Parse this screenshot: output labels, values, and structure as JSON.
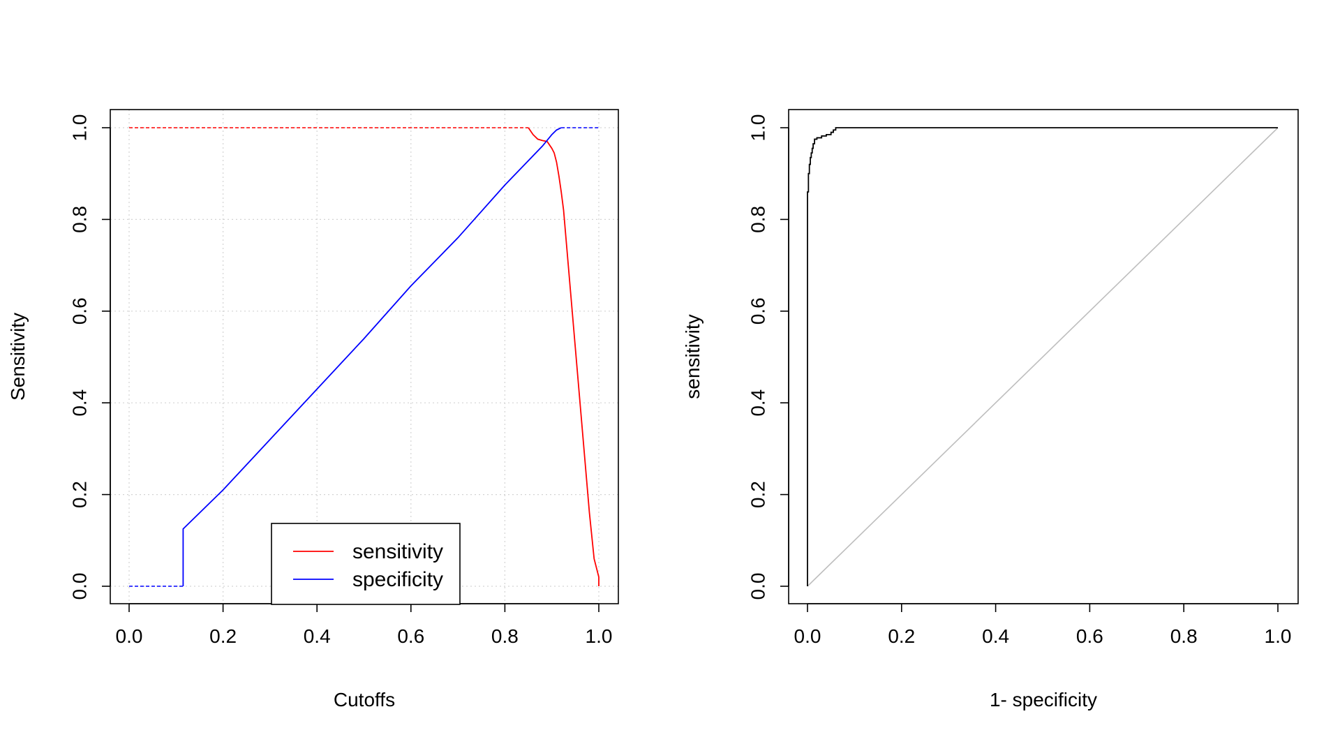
{
  "chart_data": [
    {
      "type": "line",
      "title": "",
      "xlabel": "Cutoffs",
      "ylabel": "Sensitivity",
      "xlim": [
        0,
        1
      ],
      "ylim": [
        0,
        1
      ],
      "x_ticks": [
        "0.0",
        "0.2",
        "0.4",
        "0.6",
        "0.8",
        "1.0"
      ],
      "y_ticks": [
        "0.0",
        "0.2",
        "0.4",
        "0.6",
        "0.8",
        "1.0"
      ],
      "grid": true,
      "legend": {
        "position": "bottom-center",
        "entries": [
          {
            "label": "sensitivity",
            "color": "#ff0000"
          },
          {
            "label": "specificity",
            "color": "#0000ff"
          }
        ]
      },
      "series": [
        {
          "name": "sensitivity",
          "color": "#ff0000",
          "dashed_segments": [
            {
              "x": [
                0.0,
                0.85
              ],
              "y": [
                1.0,
                1.0
              ]
            }
          ],
          "solid_segments": [
            {
              "x": [
                0.85,
                0.86,
                0.87,
                0.88,
                0.89,
                0.9,
                0.905,
                0.91,
                0.915,
                0.92,
                0.925,
                0.93,
                0.94,
                0.95,
                0.96,
                0.97,
                0.98,
                0.99,
                1.0,
                1.0
              ],
              "y": [
                1.0,
                0.985,
                0.975,
                0.972,
                0.97,
                0.955,
                0.945,
                0.925,
                0.895,
                0.86,
                0.82,
                0.76,
                0.64,
                0.52,
                0.4,
                0.28,
                0.16,
                0.06,
                0.02,
                0.0
              ]
            }
          ]
        },
        {
          "name": "specificity",
          "color": "#0000ff",
          "dashed_segments": [
            {
              "x": [
                0.0,
                0.115
              ],
              "y": [
                0.0,
                0.0
              ]
            },
            {
              "x": [
                0.92,
                1.0
              ],
              "y": [
                1.0,
                1.0
              ]
            }
          ],
          "solid_segments": [
            {
              "x": [
                0.115,
                0.115,
                0.2,
                0.3,
                0.4,
                0.5,
                0.6,
                0.7,
                0.8,
                0.88,
                0.9,
                0.91,
                0.92
              ],
              "y": [
                0.0,
                0.125,
                0.21,
                0.32,
                0.43,
                0.54,
                0.655,
                0.76,
                0.875,
                0.96,
                0.985,
                0.995,
                1.0
              ]
            }
          ]
        }
      ]
    },
    {
      "type": "line",
      "title": "",
      "xlabel": "1- specificity",
      "ylabel": "sensitivity",
      "xlim": [
        0,
        1
      ],
      "ylim": [
        0,
        1
      ],
      "x_ticks": [
        "0.0",
        "0.2",
        "0.4",
        "0.6",
        "0.8",
        "1.0"
      ],
      "y_ticks": [
        "0.0",
        "0.2",
        "0.4",
        "0.6",
        "0.8",
        "1.0"
      ],
      "grid": false,
      "reference_line": {
        "x": [
          0,
          1
        ],
        "y": [
          0,
          1
        ],
        "color": "#bebebe"
      },
      "series": [
        {
          "color": "#000000",
          "x": [
            0.0,
            0.0,
            0.002,
            0.002,
            0.004,
            0.004,
            0.006,
            0.006,
            0.008,
            0.008,
            0.01,
            0.01,
            0.012,
            0.012,
            0.015,
            0.015,
            0.02,
            0.02,
            0.03,
            0.03,
            0.04,
            0.04,
            0.05,
            0.05,
            0.055,
            0.055,
            0.06,
            0.06,
            1.0
          ],
          "y": [
            0.0,
            0.86,
            0.86,
            0.9,
            0.9,
            0.92,
            0.92,
            0.935,
            0.935,
            0.945,
            0.945,
            0.955,
            0.955,
            0.965,
            0.965,
            0.975,
            0.975,
            0.978,
            0.978,
            0.982,
            0.982,
            0.985,
            0.985,
            0.99,
            0.99,
            0.995,
            0.995,
            1.0,
            1.0
          ]
        }
      ]
    }
  ]
}
